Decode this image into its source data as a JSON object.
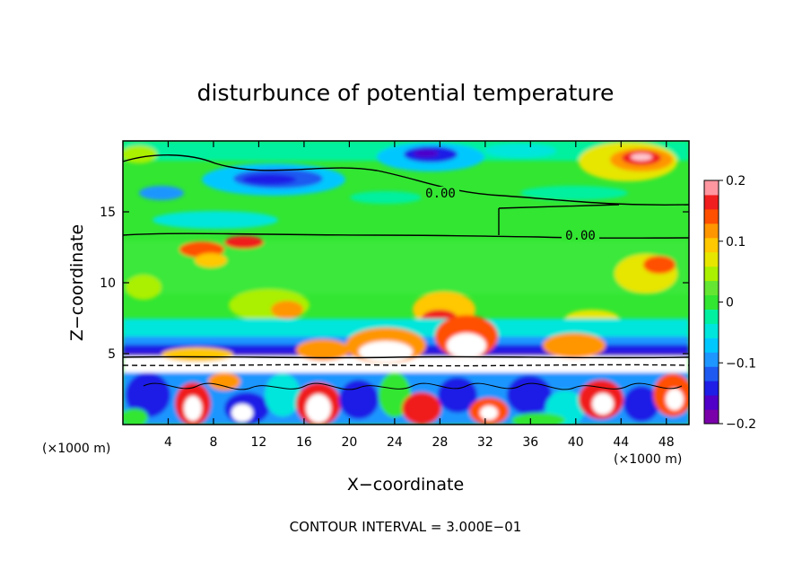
{
  "chart_data": {
    "type": "heatmap",
    "title": "disturbunce of potential temperature",
    "xlabel": "X−coordinate",
    "ylabel": "Z−coordinate",
    "x_unit_left": "(×1000 m)",
    "x_unit_right": "(×1000 m)",
    "xlim": [
      0,
      50
    ],
    "ylim": [
      0,
      20
    ],
    "x_ticks": [
      4,
      8,
      12,
      16,
      20,
      24,
      28,
      32,
      36,
      40,
      44,
      48
    ],
    "y_ticks": [
      5,
      10,
      15
    ],
    "colorbar": {
      "range": [
        -0.2,
        0.2
      ],
      "ticks": [
        "0.2",
        "0.1",
        "0",
        "−0.1",
        "−0.2"
      ],
      "tick_values": [
        0.2,
        0.1,
        0,
        -0.1,
        -0.2
      ],
      "colors": [
        "#7a00aa",
        "#5000c8",
        "#1e1ee6",
        "#1e5af0",
        "#1e96ff",
        "#00c8ff",
        "#00e6dc",
        "#00f0a0",
        "#32e632",
        "#64e632",
        "#aaf000",
        "#e6e600",
        "#ffc800",
        "#ff9600",
        "#ff5000",
        "#f01e1e",
        "#ff96a0"
      ]
    },
    "contour_labels": [
      "0.00",
      "0.00"
    ],
    "contour_interval_note": "CONTOUR INTERVAL = 3.000E−01"
  }
}
